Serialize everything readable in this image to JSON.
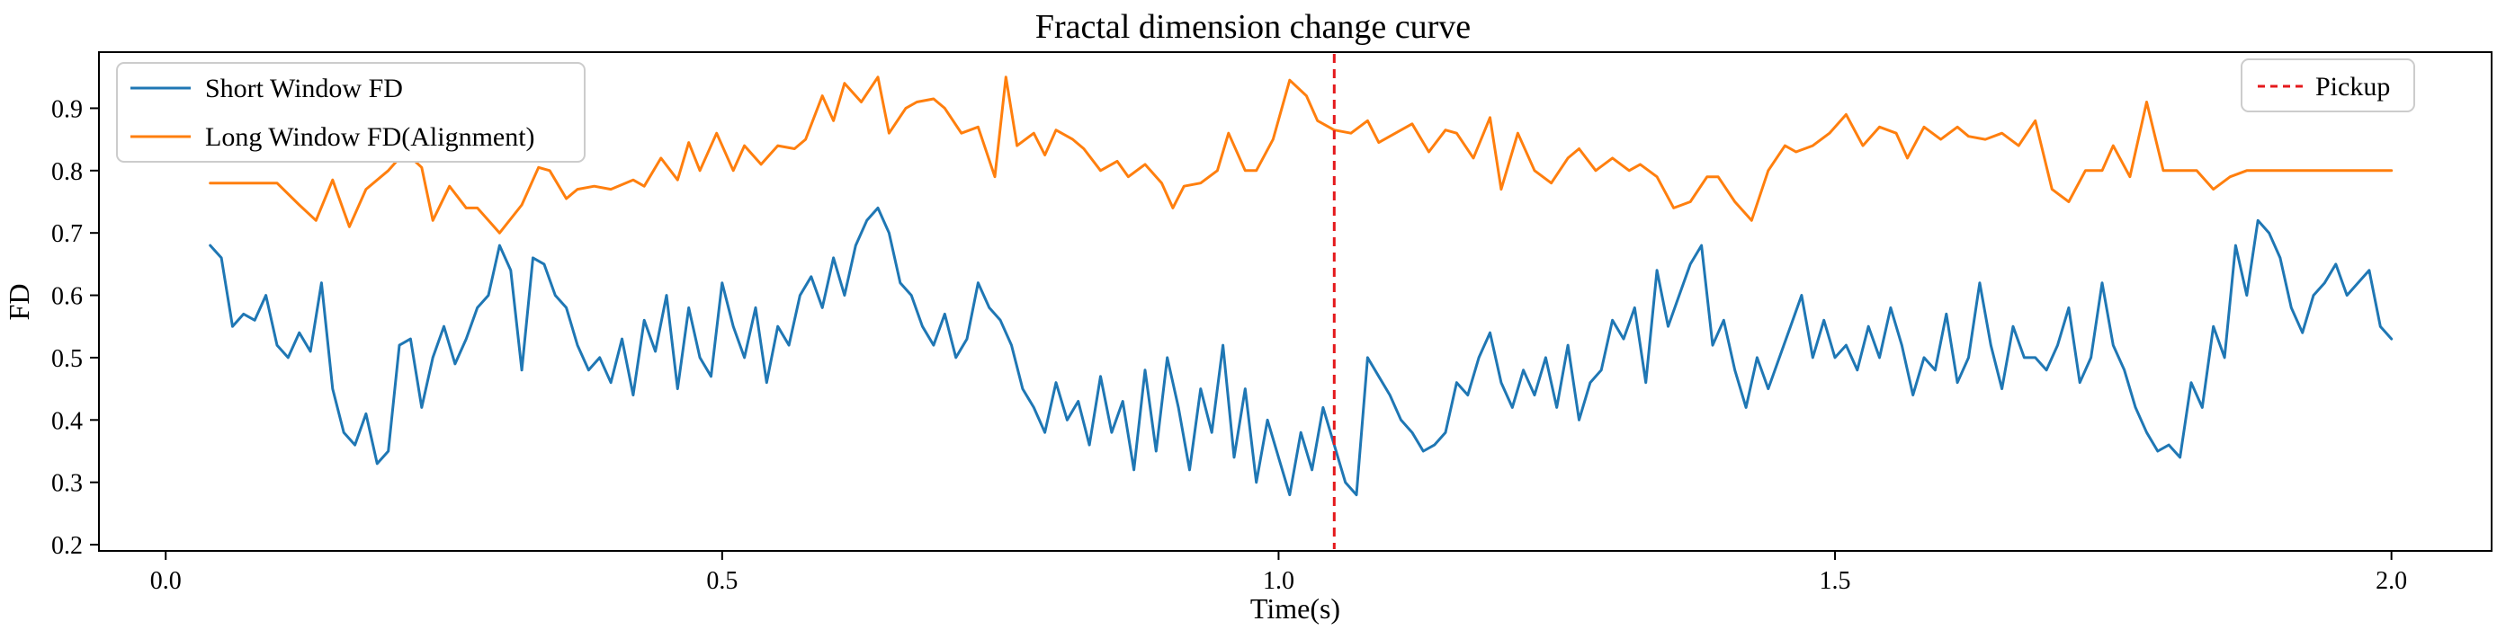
{
  "chart_data": {
    "type": "line",
    "title": "Fractal dimension change curve",
    "xlabel": "Time(s)",
    "ylabel": "FD",
    "xlim": [
      -0.06,
      2.09
    ],
    "ylim": [
      0.19,
      0.99
    ],
    "x_ticks": [
      0.0,
      0.5,
      1.0,
      1.5,
      2.0
    ],
    "x_tick_labels": [
      "0.0",
      "0.5",
      "1.0",
      "1.5",
      "2.0"
    ],
    "y_ticks": [
      0.2,
      0.3,
      0.4,
      0.5,
      0.6,
      0.7,
      0.8,
      0.9
    ],
    "y_tick_labels": [
      "0.2",
      "0.3",
      "0.4",
      "0.5",
      "0.6",
      "0.7",
      "0.8",
      "0.9"
    ],
    "grid": false,
    "legend_main_position": "top-left",
    "legend_pickup_position": "top-right",
    "series": [
      {
        "name": "Short Window FD",
        "color": "#1f77b4",
        "x": [
          0.04,
          0.05,
          0.06,
          0.07,
          0.08,
          0.09,
          0.1,
          0.11,
          0.12,
          0.13,
          0.14,
          0.15,
          0.16,
          0.17,
          0.18,
          0.19,
          0.2,
          0.21,
          0.22,
          0.23,
          0.24,
          0.25,
          0.26,
          0.27,
          0.28,
          0.29,
          0.3,
          0.31,
          0.32,
          0.33,
          0.34,
          0.35,
          0.36,
          0.37,
          0.38,
          0.39,
          0.4,
          0.41,
          0.42,
          0.43,
          0.44,
          0.45,
          0.46,
          0.47,
          0.48,
          0.49,
          0.5,
          0.51,
          0.52,
          0.53,
          0.54,
          0.55,
          0.56,
          0.57,
          0.58,
          0.59,
          0.6,
          0.61,
          0.62,
          0.63,
          0.64,
          0.65,
          0.66,
          0.67,
          0.68,
          0.69,
          0.7,
          0.71,
          0.72,
          0.73,
          0.74,
          0.75,
          0.76,
          0.77,
          0.78,
          0.79,
          0.8,
          0.81,
          0.82,
          0.83,
          0.84,
          0.85,
          0.86,
          0.87,
          0.88,
          0.89,
          0.9,
          0.91,
          0.92,
          0.93,
          0.94,
          0.95,
          0.96,
          0.97,
          0.98,
          0.99,
          1.0,
          1.01,
          1.02,
          1.03,
          1.04,
          1.05,
          1.06,
          1.07,
          1.08,
          1.09,
          1.1,
          1.11,
          1.12,
          1.13,
          1.14,
          1.15,
          1.16,
          1.17,
          1.18,
          1.19,
          1.2,
          1.21,
          1.22,
          1.23,
          1.24,
          1.25,
          1.26,
          1.27,
          1.28,
          1.29,
          1.3,
          1.31,
          1.32,
          1.33,
          1.34,
          1.35,
          1.36,
          1.37,
          1.38,
          1.39,
          1.4,
          1.41,
          1.42,
          1.43,
          1.44,
          1.45,
          1.46,
          1.47,
          1.48,
          1.49,
          1.5,
          1.51,
          1.52,
          1.53,
          1.54,
          1.55,
          1.56,
          1.57,
          1.58,
          1.59,
          1.6,
          1.61,
          1.62,
          1.63,
          1.64,
          1.65,
          1.66,
          1.67,
          1.68,
          1.69,
          1.7,
          1.71,
          1.72,
          1.73,
          1.74,
          1.75,
          1.76,
          1.77,
          1.78,
          1.79,
          1.8,
          1.81,
          1.82,
          1.83,
          1.84,
          1.85,
          1.86,
          1.87,
          1.88,
          1.89,
          1.9,
          1.91,
          1.92,
          1.93,
          1.94,
          1.95,
          1.96,
          1.97,
          1.98,
          1.99,
          2.0
        ],
        "y": [
          0.68,
          0.66,
          0.55,
          0.57,
          0.56,
          0.6,
          0.52,
          0.5,
          0.54,
          0.51,
          0.62,
          0.45,
          0.38,
          0.36,
          0.41,
          0.33,
          0.35,
          0.52,
          0.53,
          0.42,
          0.5,
          0.55,
          0.49,
          0.53,
          0.58,
          0.6,
          0.68,
          0.64,
          0.48,
          0.66,
          0.65,
          0.6,
          0.58,
          0.52,
          0.48,
          0.5,
          0.46,
          0.53,
          0.44,
          0.56,
          0.51,
          0.6,
          0.45,
          0.58,
          0.5,
          0.47,
          0.62,
          0.55,
          0.5,
          0.58,
          0.46,
          0.55,
          0.52,
          0.6,
          0.63,
          0.58,
          0.66,
          0.6,
          0.68,
          0.72,
          0.74,
          0.7,
          0.62,
          0.6,
          0.55,
          0.52,
          0.57,
          0.5,
          0.53,
          0.62,
          0.58,
          0.56,
          0.52,
          0.45,
          0.42,
          0.38,
          0.46,
          0.4,
          0.43,
          0.36,
          0.47,
          0.38,
          0.43,
          0.32,
          0.48,
          0.35,
          0.5,
          0.42,
          0.32,
          0.45,
          0.38,
          0.52,
          0.34,
          0.45,
          0.3,
          0.4,
          0.34,
          0.28,
          0.38,
          0.32,
          0.42,
          0.36,
          0.3,
          0.28,
          0.5,
          0.47,
          0.44,
          0.4,
          0.38,
          0.35,
          0.36,
          0.38,
          0.46,
          0.44,
          0.5,
          0.54,
          0.46,
          0.42,
          0.48,
          0.44,
          0.5,
          0.42,
          0.52,
          0.4,
          0.46,
          0.48,
          0.56,
          0.53,
          0.58,
          0.46,
          0.64,
          0.55,
          0.6,
          0.65,
          0.68,
          0.52,
          0.56,
          0.48,
          0.42,
          0.5,
          0.45,
          0.5,
          0.55,
          0.6,
          0.5,
          0.56,
          0.5,
          0.52,
          0.48,
          0.55,
          0.5,
          0.58,
          0.52,
          0.44,
          0.5,
          0.48,
          0.57,
          0.46,
          0.5,
          0.62,
          0.52,
          0.45,
          0.55,
          0.5,
          0.5,
          0.48,
          0.52,
          0.58,
          0.46,
          0.5,
          0.62,
          0.52,
          0.48,
          0.42,
          0.38,
          0.35,
          0.36,
          0.34,
          0.46,
          0.42,
          0.55,
          0.5,
          0.68,
          0.6,
          0.72,
          0.7,
          0.66,
          0.58,
          0.54,
          0.6,
          0.62,
          0.65,
          0.6,
          0.62,
          0.64,
          0.55,
          0.53
        ],
        "label": "Short Window FD"
      },
      {
        "name": "Long Window FD(Alignment)",
        "color": "#ff7f0e",
        "x": [
          0.04,
          0.1,
          0.12,
          0.135,
          0.15,
          0.165,
          0.18,
          0.2,
          0.215,
          0.23,
          0.24,
          0.255,
          0.27,
          0.28,
          0.3,
          0.32,
          0.335,
          0.345,
          0.36,
          0.37,
          0.385,
          0.4,
          0.42,
          0.43,
          0.445,
          0.46,
          0.47,
          0.48,
          0.495,
          0.51,
          0.52,
          0.535,
          0.55,
          0.565,
          0.575,
          0.59,
          0.6,
          0.61,
          0.625,
          0.64,
          0.65,
          0.665,
          0.675,
          0.69,
          0.7,
          0.715,
          0.73,
          0.745,
          0.755,
          0.765,
          0.78,
          0.79,
          0.8,
          0.815,
          0.825,
          0.84,
          0.855,
          0.865,
          0.88,
          0.895,
          0.905,
          0.915,
          0.93,
          0.945,
          0.955,
          0.97,
          0.98,
          0.995,
          1.01,
          1.025,
          1.035,
          1.05,
          1.065,
          1.08,
          1.09,
          1.105,
          1.12,
          1.135,
          1.15,
          1.16,
          1.175,
          1.19,
          1.2,
          1.215,
          1.23,
          1.245,
          1.26,
          1.27,
          1.285,
          1.3,
          1.315,
          1.325,
          1.34,
          1.355,
          1.37,
          1.385,
          1.395,
          1.41,
          1.425,
          1.44,
          1.455,
          1.465,
          1.48,
          1.495,
          1.51,
          1.525,
          1.54,
          1.555,
          1.565,
          1.58,
          1.595,
          1.61,
          1.62,
          1.635,
          1.65,
          1.665,
          1.68,
          1.695,
          1.71,
          1.725,
          1.74,
          1.75,
          1.765,
          1.78,
          1.795,
          1.81,
          1.825,
          1.84,
          1.855,
          1.87,
          1.885,
          1.9,
          2.0
        ],
        "y": [
          0.78,
          0.78,
          0.745,
          0.72,
          0.785,
          0.71,
          0.77,
          0.8,
          0.83,
          0.805,
          0.72,
          0.775,
          0.74,
          0.74,
          0.7,
          0.745,
          0.805,
          0.8,
          0.755,
          0.77,
          0.775,
          0.77,
          0.785,
          0.775,
          0.82,
          0.785,
          0.845,
          0.8,
          0.86,
          0.8,
          0.84,
          0.81,
          0.84,
          0.835,
          0.85,
          0.92,
          0.88,
          0.94,
          0.91,
          0.95,
          0.86,
          0.9,
          0.91,
          0.915,
          0.9,
          0.86,
          0.87,
          0.79,
          0.95,
          0.84,
          0.86,
          0.825,
          0.865,
          0.85,
          0.835,
          0.8,
          0.815,
          0.79,
          0.81,
          0.78,
          0.74,
          0.775,
          0.78,
          0.8,
          0.86,
          0.8,
          0.8,
          0.85,
          0.945,
          0.92,
          0.88,
          0.865,
          0.86,
          0.88,
          0.845,
          0.86,
          0.875,
          0.83,
          0.865,
          0.86,
          0.82,
          0.885,
          0.77,
          0.86,
          0.8,
          0.78,
          0.82,
          0.835,
          0.8,
          0.82,
          0.8,
          0.81,
          0.79,
          0.74,
          0.75,
          0.79,
          0.79,
          0.75,
          0.72,
          0.8,
          0.84,
          0.83,
          0.84,
          0.86,
          0.89,
          0.84,
          0.87,
          0.86,
          0.82,
          0.87,
          0.85,
          0.87,
          0.855,
          0.85,
          0.86,
          0.84,
          0.88,
          0.77,
          0.75,
          0.8,
          0.8,
          0.84,
          0.79,
          0.91,
          0.8,
          0.8,
          0.8,
          0.77,
          0.79,
          0.8,
          0.8,
          0.8,
          0.8
        ],
        "label": "Long Window FD(Alignment)"
      }
    ],
    "annotations": [
      {
        "type": "vline",
        "name": "Pickup",
        "x": 1.05,
        "color": "#e4191c",
        "style": "dashed",
        "label": "Pickup"
      }
    ]
  }
}
